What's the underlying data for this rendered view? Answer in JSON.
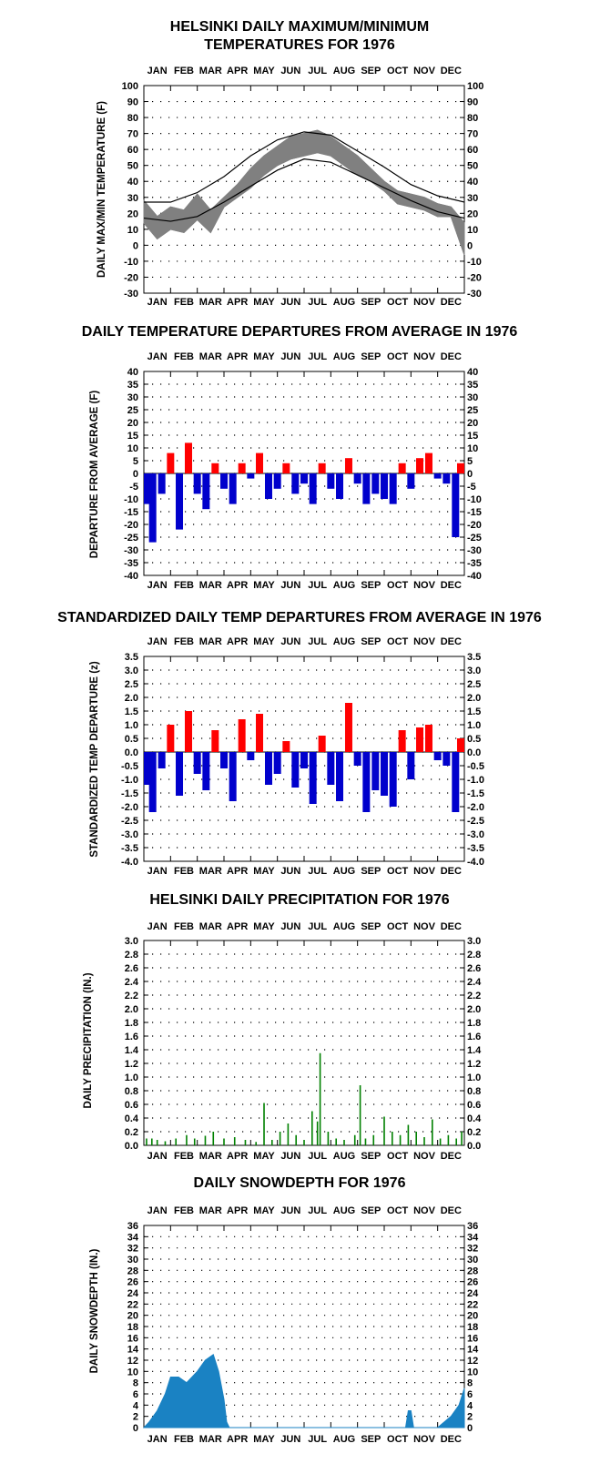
{
  "chart_data": [
    {
      "type": "line",
      "title": "HELSINKI DAILY MAXIMUM/MINIMUM TEMPERATURES FOR 1976",
      "title_lines": [
        "HELSINKI DAILY MAXIMUM/MINIMUM",
        "TEMPERATURES FOR 1976"
      ],
      "ylabel": "DAILY MAX/MIN TEMPERATURE (F)",
      "months": [
        "JAN",
        "FEB",
        "MAR",
        "APR",
        "MAY",
        "JUN",
        "JUL",
        "AUG",
        "SEP",
        "OCT",
        "NOV",
        "DEC"
      ],
      "ylim": [
        -30,
        100
      ],
      "yticks": [
        -30,
        -20,
        -10,
        0,
        10,
        20,
        30,
        40,
        50,
        60,
        70,
        80,
        90,
        100
      ],
      "grid": true,
      "colors": {
        "observed": "#808080",
        "normal": "#000000"
      },
      "series": [
        {
          "role": "observed-max",
          "x_month": [
            0,
            0.5,
            1,
            1.5,
            2,
            2.5,
            3,
            3.5,
            4,
            4.5,
            5,
            5.5,
            6,
            6.5,
            7,
            7.5,
            8,
            8.5,
            9,
            9.5,
            10,
            10.5,
            11,
            11.5,
            12
          ],
          "values": [
            28,
            18,
            24,
            22,
            32,
            22,
            30,
            38,
            48,
            56,
            62,
            68,
            70,
            72,
            68,
            62,
            56,
            48,
            40,
            34,
            32,
            30,
            26,
            24,
            14
          ]
        },
        {
          "role": "observed-min",
          "x_month": [
            0,
            0.5,
            1,
            1.5,
            2,
            2.5,
            3,
            3.5,
            4,
            4.5,
            5,
            5.5,
            6,
            6.5,
            7,
            7.5,
            8,
            8.5,
            9,
            9.5,
            10,
            10.5,
            11,
            11.5,
            12
          ],
          "values": [
            14,
            4,
            10,
            8,
            16,
            8,
            24,
            30,
            36,
            44,
            50,
            54,
            56,
            58,
            56,
            50,
            44,
            40,
            34,
            26,
            24,
            22,
            18,
            18,
            -6
          ]
        },
        {
          "role": "normal-max",
          "x_month": [
            0,
            1,
            2,
            3,
            4,
            5,
            6,
            7,
            8,
            9,
            10,
            11,
            12
          ],
          "values": [
            27,
            27,
            33,
            43,
            56,
            66,
            71,
            69,
            59,
            49,
            38,
            31,
            27
          ]
        },
        {
          "role": "normal-min",
          "x_month": [
            0,
            1,
            2,
            3,
            4,
            5,
            6,
            7,
            8,
            9,
            10,
            11,
            12
          ],
          "values": [
            17,
            15,
            18,
            27,
            37,
            47,
            54,
            52,
            44,
            36,
            28,
            21,
            17
          ]
        }
      ]
    },
    {
      "type": "bar",
      "title": "DAILY TEMPERATURE DEPARTURES FROM AVERAGE IN 1976",
      "title_lines": [
        "DAILY TEMPERATURE DEPARTURES FROM AVERAGE IN 1976"
      ],
      "ylabel": "DEPARTURE FROM AVERAGE (F)",
      "months": [
        "JAN",
        "FEB",
        "MAR",
        "APR",
        "MAY",
        "JUN",
        "JUL",
        "AUG",
        "SEP",
        "OCT",
        "NOV",
        "DEC"
      ],
      "ylim": [
        -40,
        40
      ],
      "yticks": [
        -40,
        -35,
        -30,
        -25,
        -20,
        -15,
        -10,
        -5,
        0,
        5,
        10,
        15,
        20,
        25,
        30,
        35,
        40
      ],
      "grid": true,
      "colors": {
        "positive": "#ff0000",
        "negative": "#0000cc"
      },
      "x_month": [
        0,
        0.33,
        0.67,
        1,
        1.33,
        1.67,
        2,
        2.33,
        2.67,
        3,
        3.33,
        3.67,
        4,
        4.33,
        4.67,
        5,
        5.33,
        5.67,
        6,
        6.33,
        6.67,
        7,
        7.33,
        7.67,
        8,
        8.33,
        8.67,
        9,
        9.33,
        9.67,
        10,
        10.33,
        10.67,
        11,
        11.33,
        11.67,
        12
      ],
      "values": [
        -12,
        -27,
        -8,
        8,
        -22,
        12,
        -8,
        -14,
        4,
        -6,
        -12,
        4,
        -2,
        8,
        -10,
        -6,
        4,
        -8,
        -4,
        -12,
        4,
        -6,
        -10,
        6,
        -4,
        -12,
        -8,
        -10,
        -12,
        4,
        -6,
        6,
        8,
        -2,
        -4,
        -25,
        4
      ]
    },
    {
      "type": "bar",
      "title": "STANDARDIZED DAILY TEMP DEPARTURES FROM AVERAGE IN 1976",
      "title_lines": [
        "STANDARDIZED DAILY TEMP DEPARTURES FROM AVERAGE IN 1976"
      ],
      "ylabel": "STANDARDIZED TEMP DEPARTURE (z)",
      "months": [
        "JAN",
        "FEB",
        "MAR",
        "APR",
        "MAY",
        "JUN",
        "JUL",
        "AUG",
        "SEP",
        "OCT",
        "NOV",
        "DEC"
      ],
      "ylim": [
        -4.0,
        3.5
      ],
      "yticks": [
        -4.0,
        -3.5,
        -3.0,
        -2.5,
        -2.0,
        -1.5,
        -1.0,
        -0.5,
        0.0,
        0.5,
        1.0,
        1.5,
        2.0,
        2.5,
        3.0,
        3.5
      ],
      "grid": true,
      "colors": {
        "positive": "#ff0000",
        "negative": "#0000cc"
      },
      "x_month": [
        0,
        0.33,
        0.67,
        1,
        1.33,
        1.67,
        2,
        2.33,
        2.67,
        3,
        3.33,
        3.67,
        4,
        4.33,
        4.67,
        5,
        5.33,
        5.67,
        6,
        6.33,
        6.67,
        7,
        7.33,
        7.67,
        8,
        8.33,
        8.67,
        9,
        9.33,
        9.67,
        10,
        10.33,
        10.67,
        11,
        11.33,
        11.67,
        12
      ],
      "values": [
        -1.2,
        -2.2,
        -0.6,
        1.0,
        -1.6,
        1.5,
        -0.8,
        -1.4,
        0.8,
        -0.6,
        -1.8,
        1.2,
        -0.3,
        1.4,
        -1.2,
        -0.8,
        0.4,
        -1.3,
        -0.6,
        -1.9,
        0.6,
        -1.2,
        -1.8,
        1.8,
        -0.5,
        -2.2,
        -1.4,
        -1.6,
        -2.0,
        0.8,
        -1.0,
        0.9,
        1.0,
        -0.3,
        -0.5,
        -2.2,
        0.5
      ]
    },
    {
      "type": "bar",
      "title": "HELSINKI DAILY PRECIPITATION FOR 1976",
      "title_lines": [
        "HELSINKI DAILY PRECIPITATION FOR 1976"
      ],
      "ylabel": "DAILY PRECIPITATION (IN.)",
      "months": [
        "JAN",
        "FEB",
        "MAR",
        "APR",
        "MAY",
        "JUN",
        "JUL",
        "AUG",
        "SEP",
        "OCT",
        "NOV",
        "DEC"
      ],
      "ylim": [
        0.0,
        3.0
      ],
      "yticks": [
        0.0,
        0.2,
        0.4,
        0.6,
        0.8,
        1.0,
        1.2,
        1.4,
        1.6,
        1.8,
        2.0,
        2.2,
        2.4,
        2.6,
        2.8,
        3.0
      ],
      "grid": true,
      "colors": {
        "bars": "#008000"
      },
      "x_month": [
        0.1,
        0.3,
        0.5,
        0.8,
        1.2,
        1.6,
        1.9,
        2.3,
        2.6,
        3.0,
        3.4,
        3.8,
        4.2,
        4.5,
        4.8,
        5.1,
        5.4,
        5.7,
        6.0,
        6.3,
        6.5,
        6.6,
        6.9,
        7.2,
        7.5,
        7.9,
        8.1,
        8.3,
        8.6,
        9.0,
        9.3,
        9.6,
        9.9,
        10.2,
        10.5,
        10.8,
        11.1,
        11.4,
        11.7,
        11.9
      ],
      "values": [
        0.1,
        0.1,
        0.08,
        0.06,
        0.1,
        0.15,
        0.1,
        0.14,
        0.2,
        0.1,
        0.12,
        0.08,
        0.05,
        0.62,
        0.08,
        0.2,
        0.32,
        0.15,
        0.08,
        0.5,
        0.35,
        1.35,
        0.2,
        0.1,
        0.08,
        0.15,
        0.88,
        0.1,
        0.15,
        0.42,
        0.2,
        0.15,
        0.3,
        0.2,
        0.12,
        0.38,
        0.1,
        0.15,
        0.1,
        0.2
      ]
    },
    {
      "type": "area",
      "title": "DAILY SNOWDEPTH FOR 1976",
      "title_lines": [
        "DAILY SNOWDEPTH FOR 1976"
      ],
      "ylabel": "DAILY SNOWDEPTH (IN.)",
      "months": [
        "JAN",
        "FEB",
        "MAR",
        "APR",
        "MAY",
        "JUN",
        "JUL",
        "AUG",
        "SEP",
        "OCT",
        "NOV",
        "DEC"
      ],
      "ylim": [
        0,
        36
      ],
      "yticks": [
        0,
        2,
        4,
        6,
        8,
        10,
        12,
        14,
        16,
        18,
        20,
        22,
        24,
        26,
        28,
        30,
        32,
        34,
        36
      ],
      "grid": true,
      "colors": {
        "area": "#1a82c3"
      },
      "x_month": [
        0,
        0.2,
        0.5,
        0.8,
        1.0,
        1.3,
        1.6,
        2.0,
        2.3,
        2.6,
        2.8,
        3.0,
        3.1,
        3.2,
        9.8,
        9.9,
        10.0,
        10.1,
        10.2,
        11.0,
        11.5,
        11.8,
        12.0
      ],
      "values": [
        0,
        1,
        3,
        6,
        9,
        9,
        8,
        10,
        12,
        13,
        10,
        5,
        1,
        0,
        0,
        3,
        3,
        0,
        0,
        0,
        2,
        4,
        7
      ]
    }
  ]
}
